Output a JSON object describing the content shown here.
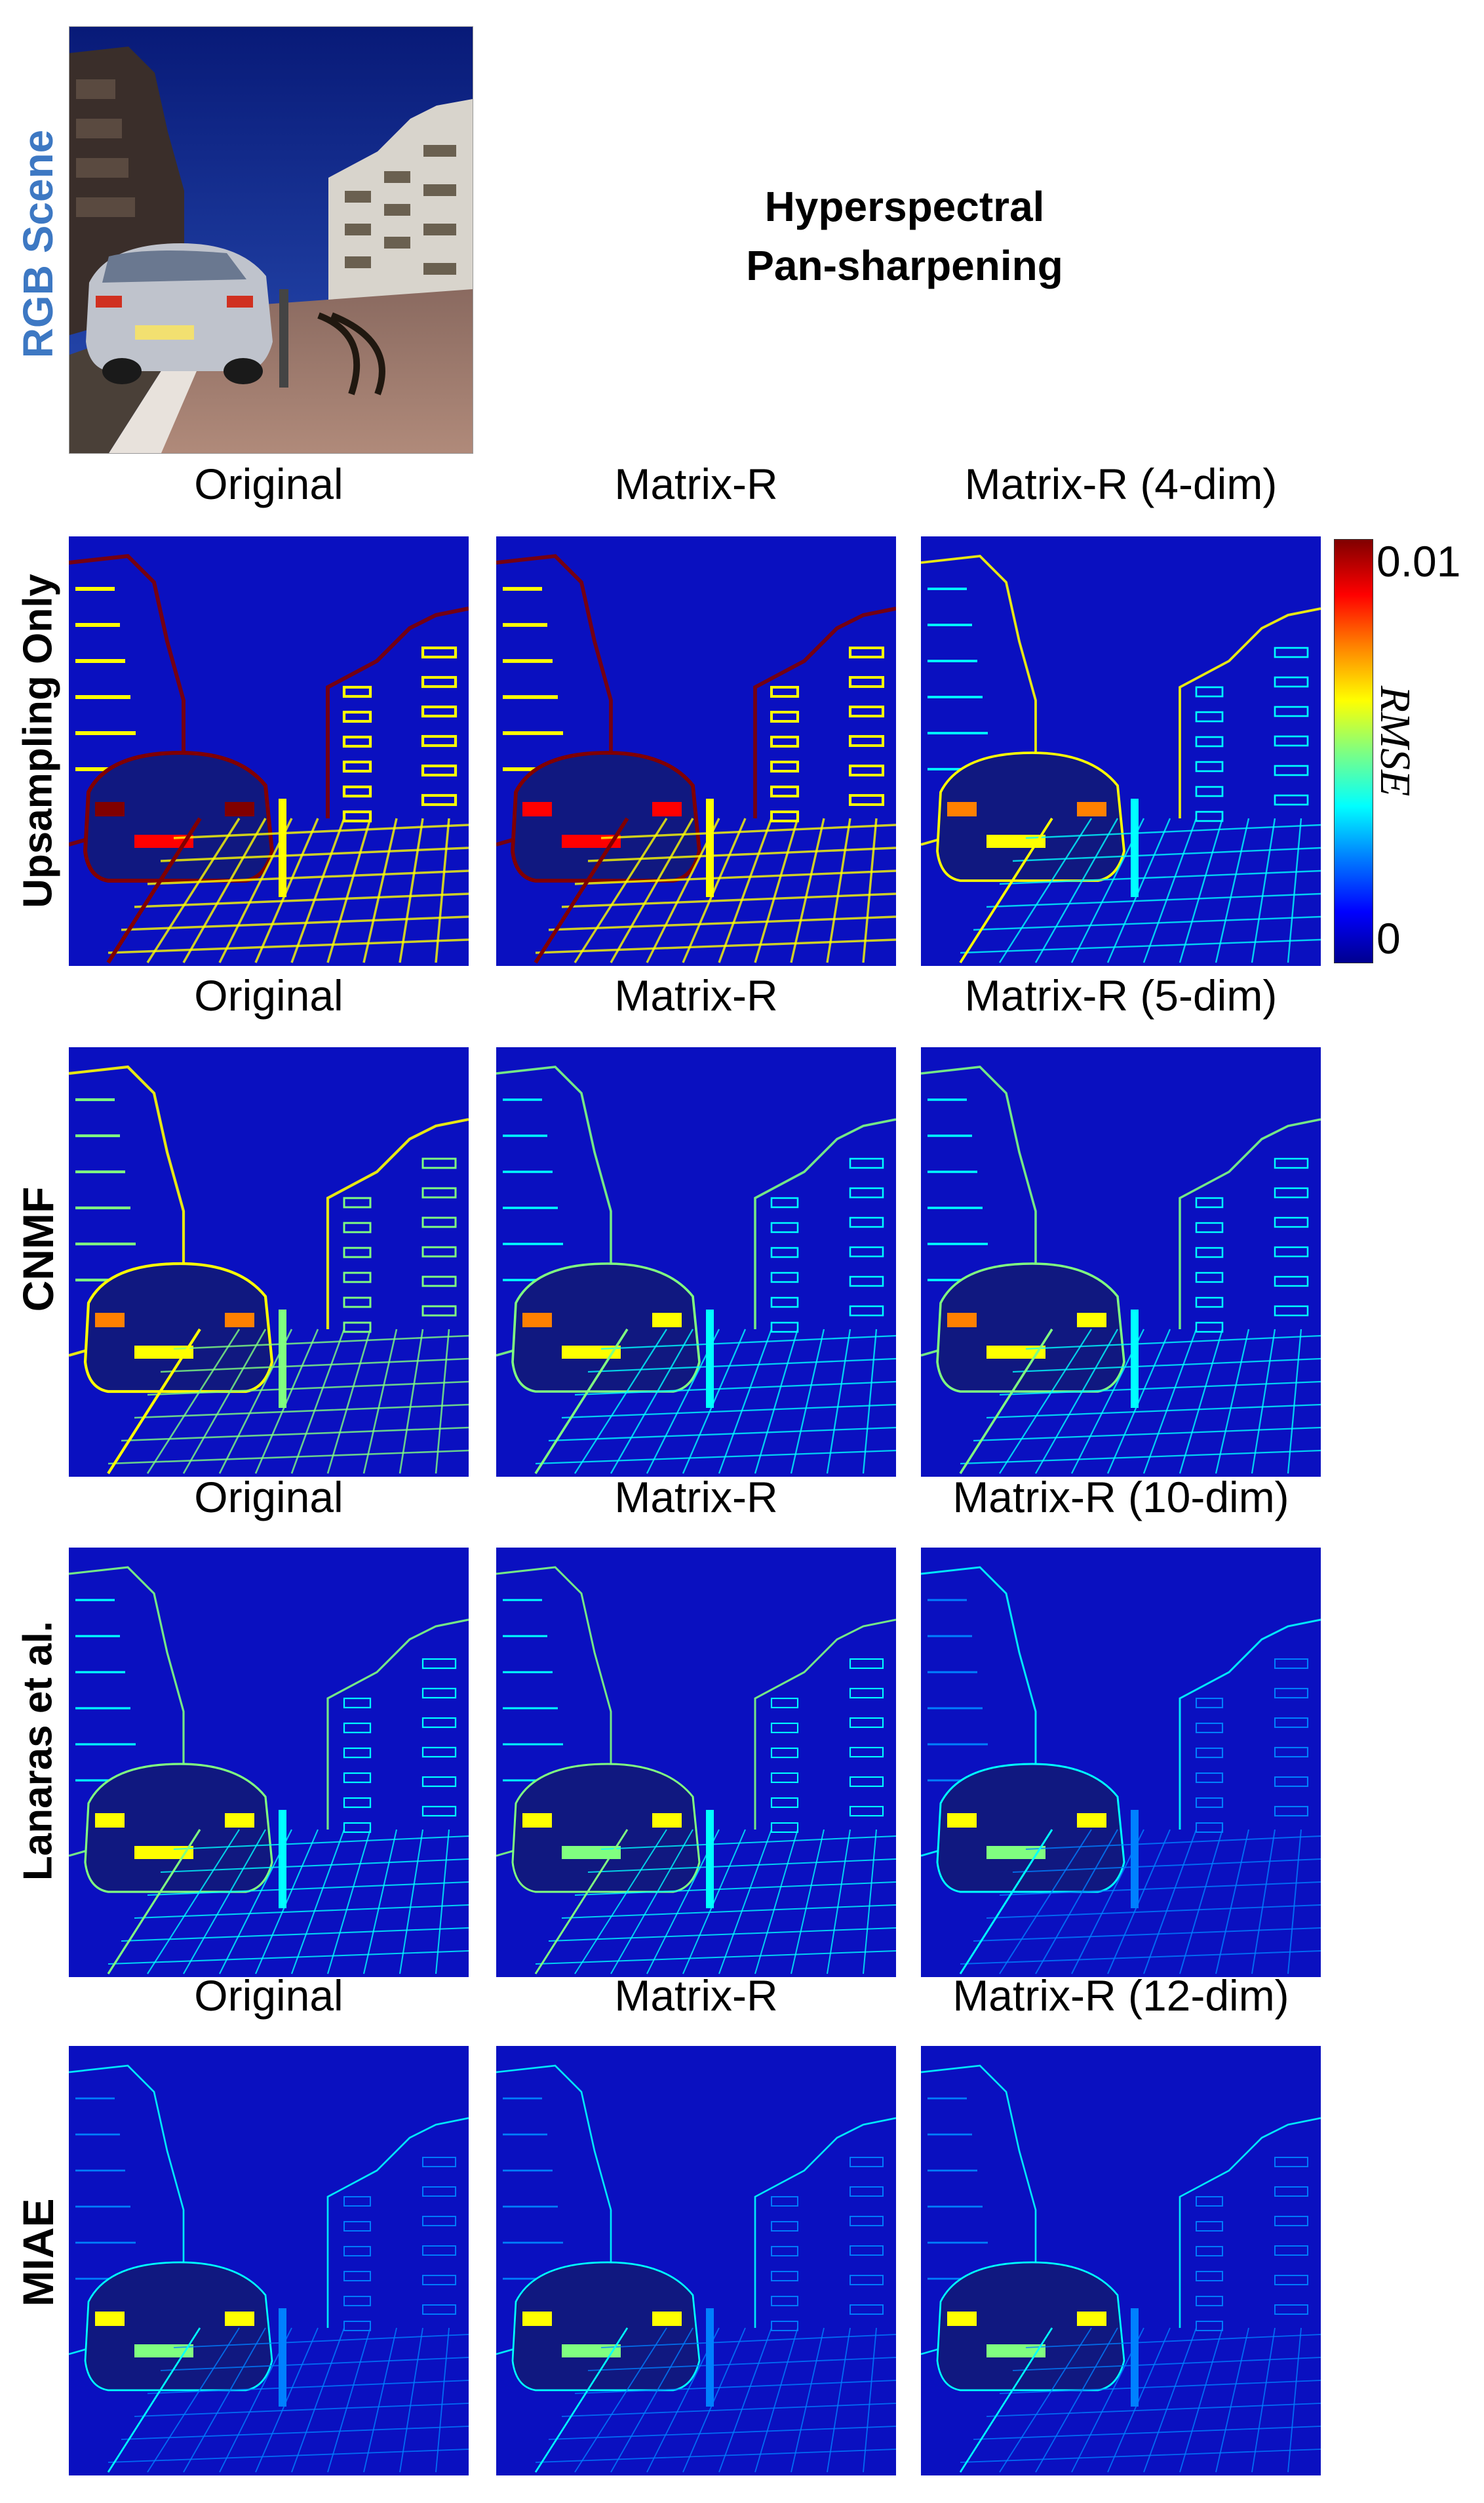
{
  "figure": {
    "title_line1": "Hyperspectral",
    "title_line2": "Pan-sharpening",
    "rgb_scene_label": "RGB Scene",
    "rows": [
      {
        "method": "Upsampling Only",
        "columns": [
          "Original",
          "Matrix-R",
          "Matrix-R (4-dim)"
        ],
        "intensity": [
          1.0,
          0.95,
          0.45
        ]
      },
      {
        "method": "CNMF",
        "columns": [
          "Original",
          "Matrix-R",
          "Matrix-R (5-dim)"
        ],
        "intensity": [
          0.55,
          0.4,
          0.38
        ]
      },
      {
        "method": "Lanaras et al.",
        "columns": [
          "Original",
          "Matrix-R",
          "Matrix-R (10-dim)"
        ],
        "intensity": [
          0.3,
          0.25,
          0.24
        ]
      },
      {
        "method": "MIAE",
        "columns": [
          "Original",
          "Matrix-R",
          "Matrix-R (12-dim)"
        ],
        "intensity": [
          0.18,
          0.17,
          0.17
        ]
      }
    ],
    "colorbar": {
      "max_label": "0.01",
      "min_label": "0",
      "quantity": "RMSE",
      "colors": [
        "#00008f",
        "#0000ff",
        "#0080ff",
        "#00ffff",
        "#80ff80",
        "#ffff00",
        "#ff8000",
        "#ff0000",
        "#800000"
      ]
    },
    "accent_color": "#3d78c3"
  }
}
